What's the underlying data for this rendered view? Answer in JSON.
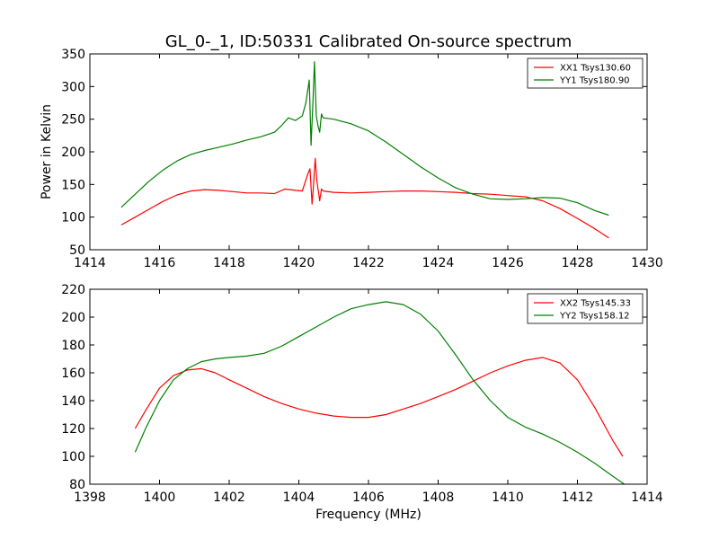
{
  "figure": {
    "title": "GL_0-_1, ID:50331 Calibrated On-source spectrum",
    "ylabel": "Power in Kelvin",
    "xlabel": "Frequency (MHz)"
  },
  "chart_data": [
    {
      "type": "line",
      "xlim": [
        1414,
        1430
      ],
      "ylim": [
        50,
        350
      ],
      "xticks": [
        1414,
        1416,
        1418,
        1420,
        1422,
        1424,
        1426,
        1428,
        1430
      ],
      "yticks": [
        50,
        100,
        150,
        200,
        250,
        300,
        350
      ],
      "legend_position": "top-right",
      "grid": false,
      "series": [
        {
          "name": "XX1 Tsys130.60",
          "color": "#ff0000",
          "x": [
            1414.9,
            1415.3,
            1415.7,
            1416.1,
            1416.5,
            1416.9,
            1417.3,
            1417.7,
            1418.1,
            1418.5,
            1418.9,
            1419.3,
            1419.6,
            1419.9,
            1420.1,
            1420.25,
            1420.32,
            1420.38,
            1420.42,
            1420.47,
            1420.52,
            1420.56,
            1420.6,
            1420.65,
            1420.7,
            1421.0,
            1421.5,
            1422.0,
            1422.5,
            1423.0,
            1423.5,
            1424.0,
            1424.5,
            1425.0,
            1425.5,
            1426.0,
            1426.5,
            1427.0,
            1427.5,
            1428.0,
            1428.5,
            1428.9
          ],
          "y": [
            88,
            100,
            112,
            124,
            134,
            140,
            142,
            141,
            139,
            137,
            137,
            136,
            143,
            141,
            140,
            165,
            174,
            120,
            148,
            190,
            155,
            140,
            125,
            143,
            140,
            138,
            137,
            138,
            139,
            140,
            140,
            139,
            138,
            136,
            135,
            133,
            131,
            125,
            113,
            98,
            82,
            68
          ]
        },
        {
          "name": "YY1 Tsys180.90",
          "color": "#008000",
          "x": [
            1414.9,
            1415.3,
            1415.7,
            1416.1,
            1416.5,
            1416.9,
            1417.3,
            1417.7,
            1418.1,
            1418.5,
            1418.9,
            1419.3,
            1419.5,
            1419.7,
            1419.9,
            1420.1,
            1420.2,
            1420.3,
            1420.35,
            1420.4,
            1420.45,
            1420.5,
            1420.55,
            1420.6,
            1420.65,
            1420.7,
            1421.0,
            1421.5,
            1422.0,
            1422.5,
            1423.0,
            1423.5,
            1424.0,
            1424.5,
            1425.0,
            1425.5,
            1426.0,
            1426.5,
            1427.0,
            1427.5,
            1428.0,
            1428.5,
            1428.9
          ],
          "y": [
            115,
            135,
            155,
            172,
            186,
            196,
            202,
            207,
            212,
            218,
            223,
            230,
            240,
            252,
            248,
            255,
            275,
            310,
            210,
            270,
            338,
            255,
            240,
            230,
            258,
            252,
            250,
            243,
            232,
            215,
            196,
            177,
            160,
            145,
            135,
            128,
            127,
            128,
            130,
            129,
            122,
            110,
            103
          ]
        }
      ]
    },
    {
      "type": "line",
      "xlim": [
        1398,
        1414
      ],
      "ylim": [
        80,
        220
      ],
      "xticks": [
        1398,
        1400,
        1402,
        1404,
        1406,
        1408,
        1410,
        1412,
        1414
      ],
      "yticks": [
        80,
        100,
        120,
        140,
        160,
        180,
        200,
        220
      ],
      "legend_position": "top-right",
      "grid": false,
      "series": [
        {
          "name": "XX2 Tsys145.33",
          "color": "#ff0000",
          "x": [
            1399.3,
            1399.6,
            1400.0,
            1400.4,
            1400.8,
            1401.2,
            1401.6,
            1402.0,
            1402.5,
            1403.0,
            1403.5,
            1404.0,
            1404.5,
            1405.0,
            1405.5,
            1406.0,
            1406.5,
            1407.0,
            1407.5,
            1408.0,
            1408.5,
            1409.0,
            1409.5,
            1410.0,
            1410.5,
            1411.0,
            1411.5,
            1412.0,
            1412.5,
            1413.0,
            1413.3
          ],
          "y": [
            120,
            133,
            149,
            158,
            162,
            163,
            160,
            155,
            149,
            143,
            138,
            134,
            131,
            129,
            128,
            128,
            130,
            134,
            138,
            143,
            148,
            154,
            160,
            165,
            169,
            171,
            167,
            155,
            135,
            112,
            100
          ]
        },
        {
          "name": "YY2 Tsys158.12",
          "color": "#008000",
          "x": [
            1399.3,
            1399.6,
            1400.0,
            1400.4,
            1400.8,
            1401.2,
            1401.6,
            1402.0,
            1402.5,
            1403.0,
            1403.5,
            1404.0,
            1404.5,
            1405.0,
            1405.5,
            1406.0,
            1406.5,
            1407.0,
            1407.5,
            1408.0,
            1408.5,
            1409.0,
            1409.5,
            1410.0,
            1410.5,
            1411.0,
            1411.5,
            1412.0,
            1412.5,
            1413.0,
            1413.4
          ],
          "y": [
            103,
            120,
            140,
            155,
            163,
            168,
            170,
            171,
            172,
            174,
            179,
            186,
            193,
            200,
            206,
            209,
            211,
            209,
            202,
            190,
            173,
            155,
            140,
            128,
            121,
            116,
            110,
            103,
            95,
            86,
            79
          ]
        }
      ]
    }
  ]
}
